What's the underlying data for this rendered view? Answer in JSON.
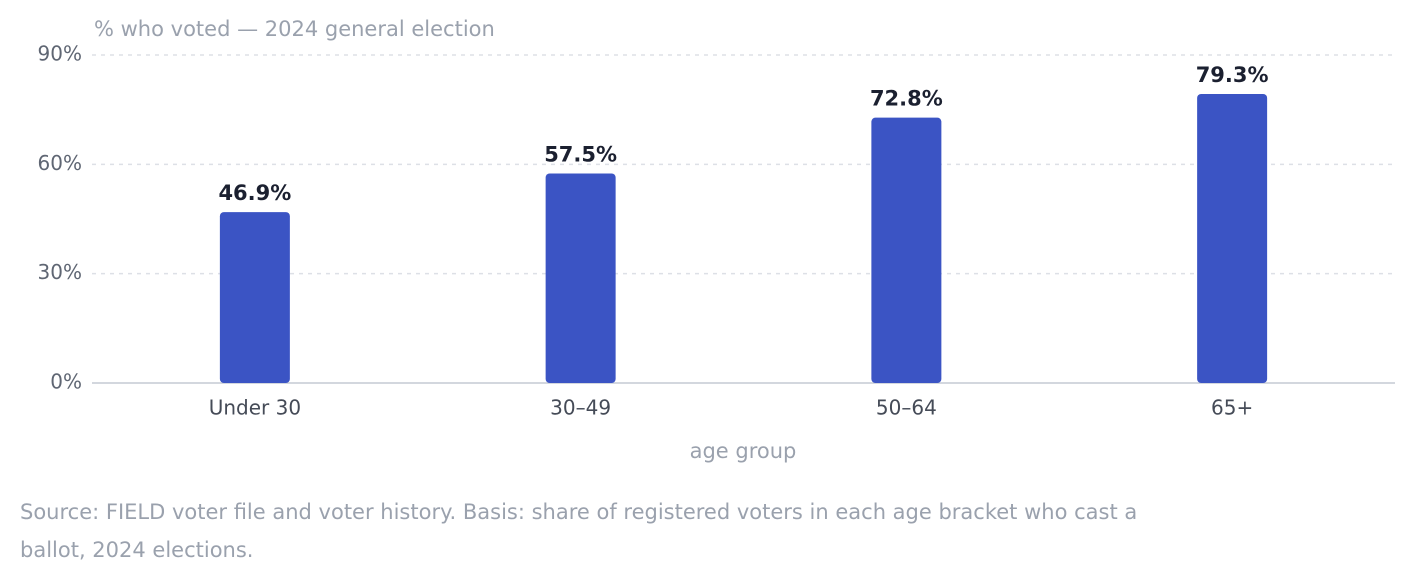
{
  "chart_data": {
    "type": "bar",
    "y_label": "% who voted — 2024 general election",
    "x_label": "age group",
    "categories": [
      "Under 30",
      "30–49",
      "50–64",
      "65+"
    ],
    "values": [
      46.9,
      57.5,
      72.8,
      79.3
    ],
    "value_labels": [
      "46.9%",
      "57.5%",
      "72.8%",
      "79.3%"
    ],
    "color": "#3b54c4",
    "ylim": [
      0,
      90
    ],
    "yticks": [
      {
        "value": 0,
        "label": "0%"
      },
      {
        "value": 30,
        "label": "30%"
      },
      {
        "value": 60,
        "label": "60%"
      },
      {
        "value": 90,
        "label": "90%"
      }
    ],
    "grid": true,
    "source": "Source: FIELD voter file and voter history. Basis: share of registered voters in each age bracket who cast a ballot, 2024 elections."
  }
}
